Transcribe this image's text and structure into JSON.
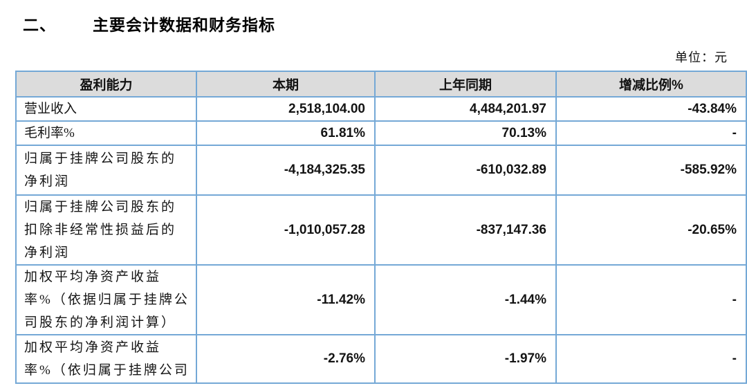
{
  "page": {
    "section_number": "二、",
    "section_title": "主要会计数据和财务指标",
    "unit_label": "单位：元"
  },
  "table": {
    "headers": {
      "col1": "盈利能力",
      "col2": "本期",
      "col3": "上年同期",
      "col4": "增减比例%"
    },
    "rows": [
      {
        "label": "营业收入",
        "current": "2,518,104.00",
        "prior": "4,484,201.97",
        "change": "-43.84%"
      },
      {
        "label": "毛利率%",
        "current": "61.81%",
        "prior": "70.13%",
        "change": "-"
      },
      {
        "label": "归属于挂牌公司股东的\n净利润",
        "current": "-4,184,325.35",
        "prior": "-610,032.89",
        "change": "-585.92%"
      },
      {
        "label": "归属于挂牌公司股东的\n扣除非经常性损益后的\n净利润",
        "current": "-1,010,057.28",
        "prior": "-837,147.36",
        "change": "-20.65%"
      },
      {
        "label": "加权平均净资产收益\n率%（依据归属于挂牌公\n司股东的净利润计算）",
        "current": "-11.42%",
        "prior": "-1.44%",
        "change": "-"
      },
      {
        "label": "加权平均净资产收益\n率%（依归属于挂牌公司",
        "current": "-2.76%",
        "prior": "-1.97%",
        "change": "-"
      }
    ]
  }
}
